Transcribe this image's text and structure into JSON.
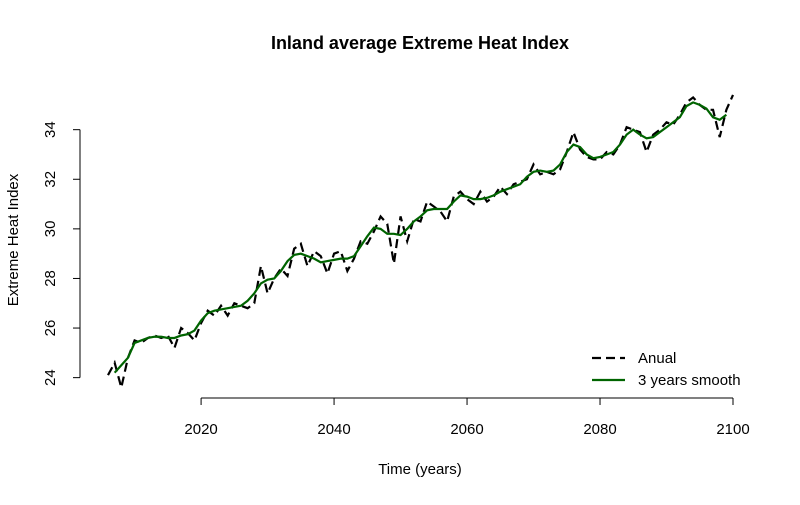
{
  "chart_data": {
    "type": "line",
    "title": "Inland average Extreme Heat Index",
    "x_label": "Time (years)",
    "y_label": "Extreme Heat Index",
    "x": [
      2006,
      2007,
      2008,
      2009,
      2010,
      2011,
      2012,
      2013,
      2014,
      2015,
      2016,
      2017,
      2018,
      2019,
      2020,
      2021,
      2022,
      2023,
      2024,
      2025,
      2026,
      2027,
      2028,
      2029,
      2030,
      2031,
      2032,
      2033,
      2034,
      2035,
      2036,
      2037,
      2038,
      2039,
      2040,
      2041,
      2042,
      2043,
      2044,
      2045,
      2046,
      2047,
      2048,
      2049,
      2050,
      2051,
      2052,
      2053,
      2054,
      2055,
      2056,
      2057,
      2058,
      2059,
      2060,
      2061,
      2062,
      2063,
      2064,
      2065,
      2066,
      2067,
      2068,
      2069,
      2070,
      2071,
      2072,
      2073,
      2074,
      2075,
      2076,
      2077,
      2078,
      2079,
      2080,
      2081,
      2082,
      2083,
      2084,
      2085,
      2086,
      2087,
      2088,
      2089,
      2090,
      2091,
      2092,
      2093,
      2094,
      2095,
      2096,
      2097,
      2098,
      2099,
      2100
    ],
    "series": [
      {
        "name": "Anual",
        "color": "#000000",
        "dash": true,
        "values": [
          24.1,
          24.6,
          23.6,
          24.8,
          25.5,
          25.4,
          25.6,
          25.7,
          25.6,
          25.7,
          25.2,
          26.0,
          25.8,
          25.5,
          26.2,
          26.7,
          26.5,
          26.9,
          26.5,
          27.0,
          26.9,
          26.8,
          27.0,
          28.5,
          27.4,
          28.0,
          28.4,
          28.1,
          29.2,
          29.4,
          28.5,
          29.1,
          28.9,
          28.2,
          29.0,
          29.1,
          28.3,
          28.8,
          29.5,
          29.4,
          29.9,
          30.5,
          30.2,
          28.6,
          30.5,
          29.5,
          30.4,
          30.3,
          31.1,
          30.9,
          30.7,
          30.3,
          31.3,
          31.5,
          31.2,
          31.0,
          31.5,
          31.1,
          31.3,
          31.7,
          31.4,
          31.8,
          31.9,
          32.0,
          32.6,
          32.2,
          32.3,
          32.2,
          32.4,
          33.1,
          33.9,
          33.2,
          32.9,
          32.8,
          32.8,
          33.1,
          33.0,
          33.4,
          34.1,
          34.0,
          33.9,
          33.1,
          33.8,
          34.0,
          34.3,
          34.2,
          34.6,
          35.1,
          35.3,
          35.0,
          34.8,
          34.8,
          33.7,
          34.8,
          35.4
        ]
      },
      {
        "name": "3 years smooth",
        "color": "#006400",
        "dash": false,
        "values": [
          null,
          24.2,
          24.5,
          24.8,
          25.4,
          25.5,
          25.6,
          25.65,
          25.65,
          25.6,
          25.6,
          25.7,
          25.75,
          25.9,
          26.3,
          26.6,
          26.7,
          26.75,
          26.8,
          26.85,
          26.9,
          27.1,
          27.4,
          27.8,
          27.95,
          28.0,
          28.3,
          28.7,
          28.95,
          29.0,
          28.9,
          28.8,
          28.65,
          28.7,
          28.75,
          28.8,
          28.8,
          28.9,
          29.3,
          29.7,
          30.05,
          30.0,
          29.8,
          29.8,
          29.75,
          30.0,
          30.3,
          30.5,
          30.75,
          30.8,
          30.8,
          30.8,
          31.1,
          31.35,
          31.3,
          31.2,
          31.2,
          31.25,
          31.35,
          31.5,
          31.6,
          31.7,
          31.8,
          32.1,
          32.3,
          32.35,
          32.3,
          32.35,
          32.6,
          33.1,
          33.4,
          33.3,
          33.0,
          32.85,
          32.9,
          33.0,
          33.1,
          33.4,
          33.8,
          34.0,
          33.8,
          33.65,
          33.7,
          33.9,
          34.1,
          34.3,
          34.5,
          34.95,
          35.1,
          35.0,
          34.85,
          34.5,
          34.4,
          34.6,
          null
        ]
      }
    ],
    "xlim": [
      2002.24,
      2103.76
    ],
    "ylim": [
      23.3,
      35.6
    ],
    "xticks": [
      2020,
      2040,
      2060,
      2080,
      2100
    ],
    "yticks": [
      24,
      26,
      28,
      30,
      32,
      34
    ],
    "legend": "bottom-right"
  }
}
